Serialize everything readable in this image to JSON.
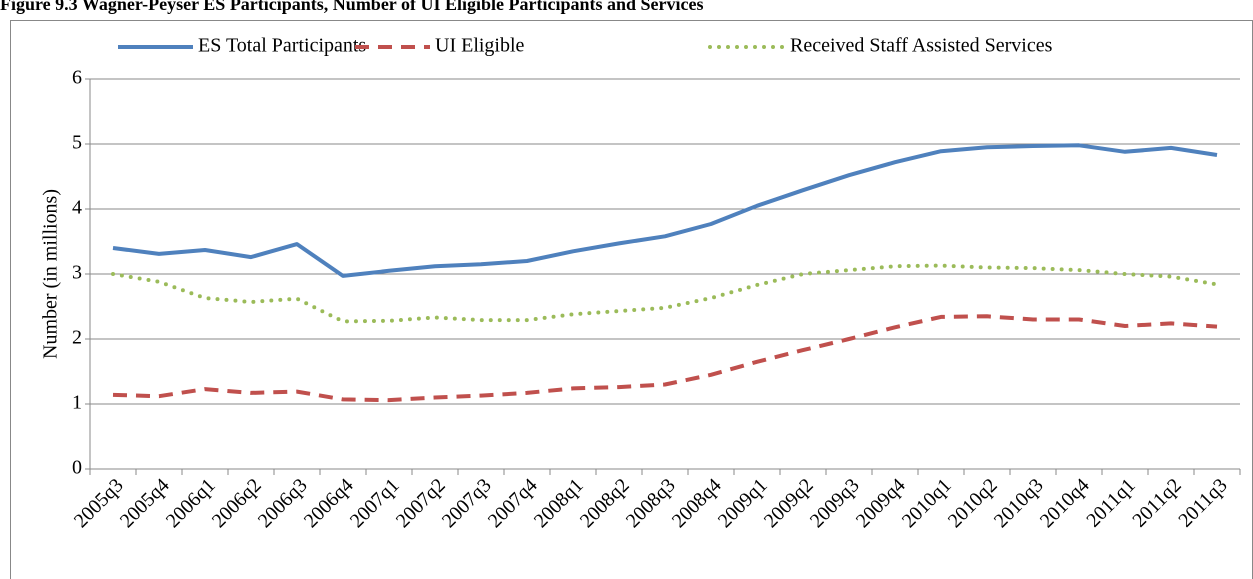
{
  "chart_data": {
    "type": "line",
    "title": "Figure 9.3 Wagner-Peyser ES Participants, Number of UI Eligible Participants and Services",
    "y_label": "Number (in millions)",
    "categories": [
      "2005q3",
      "2005q4",
      "2006q1",
      "2006q2",
      "2006q3",
      "2006q4",
      "2007q1",
      "2007q2",
      "2007q3",
      "2007q4",
      "2008q1",
      "2008q2",
      "2008q3",
      "2008q4",
      "2009q1",
      "2009q2",
      "2009q3",
      "2009q4",
      "2010q1",
      "2010q2",
      "2010q3",
      "2010q4",
      "2011q1",
      "2011q2",
      "2011q3"
    ],
    "series": [
      {
        "name": "ES Total Participants",
        "color": "#4f81bd",
        "dash": "solid",
        "values": [
          3.4,
          3.31,
          3.37,
          3.26,
          3.46,
          2.97,
          3.05,
          3.12,
          3.15,
          3.2,
          3.35,
          3.47,
          3.58,
          3.77,
          4.05,
          4.29,
          4.52,
          4.72,
          4.89,
          4.95,
          4.97,
          4.98,
          4.88,
          4.94,
          4.83
        ]
      },
      {
        "name": "UI Eligible",
        "color": "#c0504d",
        "dash": "dashed",
        "values": [
          1.14,
          1.12,
          1.23,
          1.17,
          1.19,
          1.07,
          1.06,
          1.1,
          1.13,
          1.17,
          1.24,
          1.26,
          1.3,
          1.45,
          1.65,
          1.83,
          2.0,
          2.18,
          2.34,
          2.35,
          2.3,
          2.3,
          2.2,
          2.24,
          2.19
        ]
      },
      {
        "name": "Received Staff Assisted Services",
        "color": "#9bbb59",
        "dash": "dotted",
        "values": [
          3.0,
          2.88,
          2.63,
          2.57,
          2.62,
          2.27,
          2.28,
          2.33,
          2.29,
          2.29,
          2.38,
          2.43,
          2.48,
          2.63,
          2.83,
          3.0,
          3.06,
          3.12,
          3.13,
          3.1,
          3.09,
          3.06,
          3.0,
          2.96,
          2.84
        ]
      }
    ],
    "ylim": [
      0,
      6
    ],
    "yticks": [
      0,
      1,
      2,
      3,
      4,
      5,
      6
    ],
    "grid": true,
    "legend": "top"
  }
}
